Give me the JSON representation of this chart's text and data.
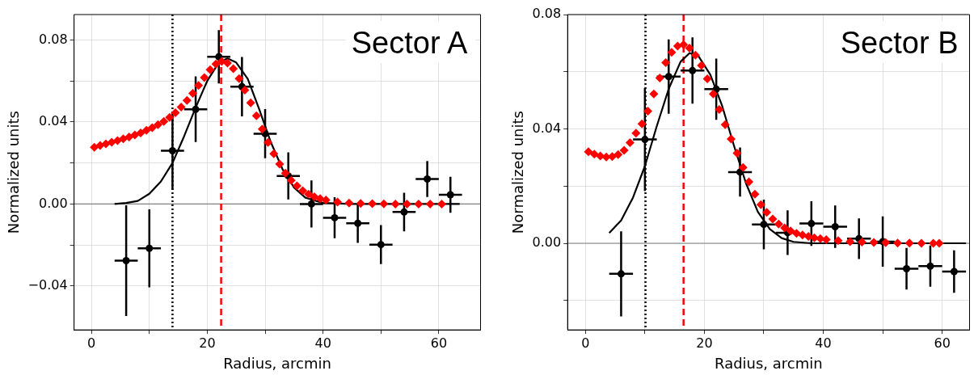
{
  "chart_data": [
    {
      "type": "scatter",
      "xlabel": "Radius, arcmin",
      "ylabel": "Normalized units",
      "annotations": [
        "Sector A"
      ],
      "grid": true,
      "legend": false,
      "xlim": [
        -3,
        67.2
      ],
      "ylim": [
        -0.0614,
        0.0924
      ],
      "xticks": [
        0,
        {
          "value": 10,
          "label": null
        },
        20,
        {
          "value": 30,
          "label": null
        },
        40,
        {
          "value": 50,
          "label": null
        },
        60
      ],
      "yticks": [
        {
          "value": -0.04,
          "label": "−0.04"
        },
        {
          "value": -0.02,
          "label": null
        },
        {
          "value": 0,
          "label": "0.00"
        },
        {
          "value": 0.02,
          "label": null
        },
        {
          "value": 0.04,
          "label": "0.04"
        },
        {
          "value": 0.06,
          "label": null
        },
        {
          "value": 0.08,
          "label": "0.08"
        }
      ],
      "ref_lines": [
        {
          "axis": "y",
          "value": 0,
          "color": "#808080",
          "line_style": "solid"
        },
        {
          "axis": "x",
          "value": 14,
          "color": "#000000",
          "line_style": "dotted"
        },
        {
          "axis": "x",
          "value": 22.4,
          "color": "#ff0000",
          "line_style": "dashed"
        }
      ],
      "series": [
        {
          "type": "scatter",
          "marker": "diamond",
          "color": "#ff0000",
          "x": [
            0.5,
            1.5,
            2.5,
            3.5,
            4.5,
            5.5,
            6.5,
            7.5,
            8.5,
            9.5,
            10.5,
            11.5,
            12.5,
            13.5,
            14.5,
            15.5,
            16.5,
            17.5,
            18.5,
            19.5,
            20.5,
            21.5,
            22.5,
            23.5,
            24.5,
            25.5,
            26.5,
            27.5,
            28.5,
            29.5,
            30.5,
            31.5,
            32.5,
            33.5,
            34.5,
            35.5,
            36.5,
            37.5,
            38.5,
            39.5,
            40.5,
            42.5,
            44.5,
            46.5,
            48.5,
            50.5,
            52.5,
            54.5,
            56.5,
            58.5,
            60.5
          ],
          "values": [
            0.0277,
            0.0285,
            0.0293,
            0.0301,
            0.0309,
            0.0318,
            0.0327,
            0.0337,
            0.0347,
            0.0359,
            0.0372,
            0.0387,
            0.0403,
            0.0422,
            0.0445,
            0.0473,
            0.0505,
            0.054,
            0.0578,
            0.0617,
            0.0655,
            0.0683,
            0.0695,
            0.0688,
            0.066,
            0.0612,
            0.0555,
            0.0493,
            0.043,
            0.0365,
            0.03,
            0.0245,
            0.0195,
            0.015,
            0.0115,
            0.0088,
            0.0065,
            0.0048,
            0.0035,
            0.0026,
            0.0019,
            0.001,
            0.0005,
            0.0003,
            0.0002,
            0.0001,
            0,
            0,
            0,
            0,
            0
          ]
        },
        {
          "type": "line",
          "marker": "none",
          "line_style": "solid",
          "color": "#000000",
          "x": [
            4,
            6,
            8,
            10,
            12,
            14,
            16,
            18,
            20,
            22,
            23.5,
            25,
            27,
            29,
            31,
            33,
            35,
            37,
            40,
            45,
            50,
            63.6
          ],
          "values": [
            0.0,
            0.0005,
            0.0015,
            0.005,
            0.011,
            0.02,
            0.033,
            0.047,
            0.06,
            0.069,
            0.071,
            0.069,
            0.061,
            0.046,
            0.03,
            0.017,
            0.008,
            0.003,
            0.0005,
            0,
            0,
            0
          ]
        },
        {
          "type": "scatter",
          "marker": "circle",
          "color": "#000000",
          "x": [
            6,
            10,
            14,
            18,
            22,
            26,
            30,
            34,
            38,
            42,
            46,
            50,
            54,
            58,
            62
          ],
          "values": [
            -0.0276,
            -0.0216,
            0.026,
            0.0462,
            0.0718,
            0.0572,
            0.0343,
            0.0137,
            0.0,
            -0.0067,
            -0.0094,
            -0.0198,
            -0.0039,
            0.0122,
            0.0045
          ],
          "errors": [
            0.027,
            0.019,
            0.019,
            0.016,
            0.013,
            0.0145,
            0.012,
            0.0115,
            0.0115,
            0.01,
            0.0095,
            0.0095,
            0.0094,
            0.0088,
            0.0088
          ],
          "xerrors": [
            2,
            2,
            2,
            2,
            2,
            2,
            2,
            2,
            2,
            2,
            2,
            2,
            2,
            2,
            2
          ]
        }
      ]
    },
    {
      "type": "scatter",
      "xlabel": "Radius, arcmin",
      "ylabel": "Normalized units",
      "annotations": [
        "Sector B"
      ],
      "grid": true,
      "legend": false,
      "xlim": [
        -3,
        64.6
      ],
      "ylim": [
        -0.0303,
        0.08
      ],
      "xticks": [
        0,
        {
          "value": 10,
          "label": null
        },
        20,
        {
          "value": 30,
          "label": null
        },
        40,
        {
          "value": 50,
          "label": null
        },
        60
      ],
      "yticks": [
        {
          "value": -0.02,
          "label": null
        },
        {
          "value": 0,
          "label": "0.00"
        },
        {
          "value": 0.02,
          "label": null
        },
        {
          "value": 0.04,
          "label": "0.04"
        },
        {
          "value": 0.06,
          "label": null
        },
        {
          "value": 0.08,
          "label": "0.08"
        }
      ],
      "ref_lines": [
        {
          "axis": "y",
          "value": 0,
          "color": "#808080",
          "line_style": "solid"
        },
        {
          "axis": "x",
          "value": 10.1,
          "color": "#000000",
          "line_style": "dotted"
        },
        {
          "axis": "x",
          "value": 16.5,
          "color": "#ff0000",
          "line_style": "dashed"
        }
      ],
      "series": [
        {
          "type": "scatter",
          "marker": "diamond",
          "color": "#ff0000",
          "x": [
            0.5,
            1.5,
            2.5,
            3.5,
            4.5,
            5.5,
            6.5,
            7.5,
            8.5,
            9.5,
            10.5,
            11.5,
            12.5,
            13.5,
            14.5,
            15.5,
            16.5,
            17.5,
            18.5,
            19.5,
            20.5,
            21.5,
            22.5,
            23.5,
            24.5,
            25.5,
            26.5,
            27.5,
            28.5,
            29.5,
            30.5,
            31.5,
            32.5,
            33.5,
            34.5,
            35.5,
            36.5,
            37.5,
            38.5,
            39.5,
            40.5,
            42.5,
            44.5,
            46.5,
            48.5,
            50.5,
            52.5,
            54.5,
            56.5,
            58.5,
            59.5
          ],
          "values": [
            0.032,
            0.0312,
            0.0305,
            0.0302,
            0.0303,
            0.031,
            0.0325,
            0.0352,
            0.0385,
            0.0418,
            0.0462,
            0.0522,
            0.0578,
            0.0632,
            0.0668,
            0.069,
            0.0695,
            0.0683,
            0.0658,
            0.0622,
            0.0575,
            0.0522,
            0.0468,
            0.0415,
            0.0365,
            0.0315,
            0.0265,
            0.0215,
            0.0172,
            0.0135,
            0.0108,
            0.0085,
            0.0067,
            0.0054,
            0.0043,
            0.0035,
            0.0029,
            0.0024,
            0.0019,
            0.0016,
            0.0013,
            0.0009,
            0.0006,
            0.0004,
            0.0003,
            0.0002,
            0.0001,
            0.0001,
            0,
            0,
            0
          ]
        },
        {
          "type": "line",
          "marker": "none",
          "line_style": "solid",
          "color": "#000000",
          "x": [
            4,
            6,
            8,
            10,
            12,
            14,
            16,
            17.5,
            19,
            21,
            23,
            25,
            27,
            29,
            31,
            33,
            35,
            38,
            45,
            55,
            64
          ],
          "values": [
            0.0036,
            0.008,
            0.016,
            0.027,
            0.041,
            0.054,
            0.0635,
            0.0665,
            0.0655,
            0.059,
            0.048,
            0.034,
            0.021,
            0.011,
            0.005,
            0.0018,
            0.0005,
            0,
            0,
            0,
            0
          ]
        },
        {
          "type": "scatter",
          "marker": "circle",
          "color": "#000000",
          "x": [
            6,
            10,
            14,
            18,
            22,
            26,
            30,
            34,
            38,
            42,
            46,
            50,
            54,
            58,
            62
          ],
          "values": [
            -0.0107,
            0.0363,
            0.0583,
            0.0604,
            0.0539,
            0.0249,
            0.0066,
            0.0037,
            0.0069,
            0.0058,
            0.0016,
            0.0006,
            -0.0089,
            -0.008,
            -0.0099
          ],
          "errors": [
            0.0149,
            0.018,
            0.013,
            0.0116,
            0.0107,
            0.0086,
            0.0087,
            0.0078,
            0.0078,
            0.0074,
            0.0071,
            0.0088,
            0.0073,
            0.0072,
            0.0074
          ],
          "xerrors": [
            2,
            2,
            2,
            2,
            2,
            2,
            2,
            2,
            2,
            2,
            2,
            2,
            2,
            2,
            2
          ]
        }
      ]
    }
  ]
}
